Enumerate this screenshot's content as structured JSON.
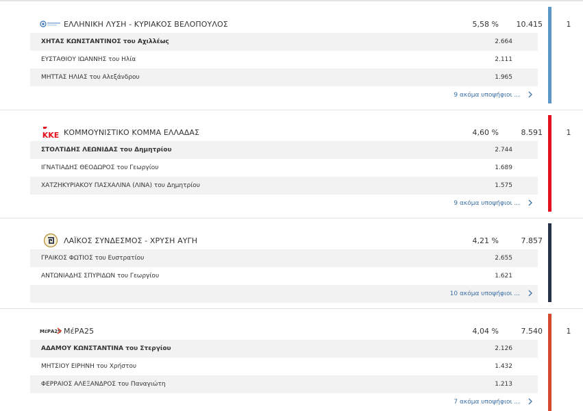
{
  "parties": [
    {
      "name": "ΕΛΛΗΝΙΚΗ ΛΥΣΗ - ΚΥΡΙΑΚΟΣ ΒΕΛΟΠΟΥΛΟΣ",
      "logo_icon": "elliniki-lysi-logo",
      "percent": "5,58 %",
      "votes": "10.415",
      "seats": "1",
      "color": "#5b97c9",
      "candidates": [
        {
          "name": "ΧΗΤΑΣ ΚΩΝΣΤΑΝΤΙΝΟΣ του Αχιλλέως",
          "votes": "2.664"
        },
        {
          "name": "ΕΥΣΤΑΘΙΟΥ ΙΩΑΝΝΗΣ του Ηλία",
          "votes": "2.111"
        },
        {
          "name": "ΜΗΤΤΑΣ ΗΛΙΑΣ του Αλεξάνδρου",
          "votes": "1.965"
        }
      ],
      "more": "9 ακόμα υποψήφιοι ..."
    },
    {
      "name": "ΚΟΜΜΟΥΝΙΣΤΙΚΟ ΚΟΜΜΑ ΕΛΛΑΔΑΣ",
      "logo_icon": "kke-logo",
      "logo_text": "ΚΚΕ",
      "percent": "4,60 %",
      "votes": "8.591",
      "seats": "1",
      "color": "#e3101e",
      "candidates": [
        {
          "name": "ΣΤΟΛΤΙΔΗΣ ΛΕΩΝΙΔΑΣ του Δημητρίου",
          "votes": "2.744"
        },
        {
          "name": "ΙΓΝΑΤΙΑΔΗΣ ΘΕΟΔΩΡΟΣ του Γεωργίου",
          "votes": "1.689"
        },
        {
          "name": "ΧΑΤΖΗΚΥΡΙΑΚΟΥ ΠΑΣΧΑΛΙΝΑ (ΛΙΝΑ) του Δημητρίου",
          "votes": "1.575"
        }
      ],
      "more": "9 ακόμα υποψήφιοι ..."
    },
    {
      "name": "ΛΑΪΚΟΣ ΣΥΝΔΕΣΜΟΣ - ΧΡΥΣΗ ΑΥΓΗ",
      "logo_icon": "chrysi-avgi-logo",
      "percent": "4,21 %",
      "votes": "7.857",
      "seats": "",
      "color": "#27324a",
      "candidates": [
        {
          "name": "ΓΡΑΙΚΟΣ ΦΩΤΙΟΣ του Ευστρατίου",
          "votes": "2.655"
        },
        {
          "name": "ΑΝΤΩΝΙΑΔΗΣ ΣΠΥΡΙΔΩΝ του Γεωργίου",
          "votes": "1.621"
        }
      ],
      "more": "10 ακόμα υποψήφιοι ..."
    },
    {
      "name": "ΜέΡΑ25",
      "logo_icon": "mera25-logo",
      "logo_text": "ΜέΡΑ25",
      "percent": "4,04 %",
      "votes": "7.540",
      "seats": "1",
      "color": "#d4482e",
      "candidates": [
        {
          "name": "ΑΔΑΜΟΥ ΚΩΝΣΤΑΝΤΙΝΑ του Στεργίου",
          "votes": "2.126"
        },
        {
          "name": "ΜΗΤΣΙΟΥ ΕΙΡΗΝΗ του Χρήστου",
          "votes": "1.432"
        },
        {
          "name": "ΦΕΡΡΑΙΟΣ ΑΛΕΞΑΝΔΡΟΣ του Παναγιώτη",
          "votes": "1.213"
        }
      ],
      "more": "7 ακόμα υποψήφιοι ..."
    }
  ]
}
